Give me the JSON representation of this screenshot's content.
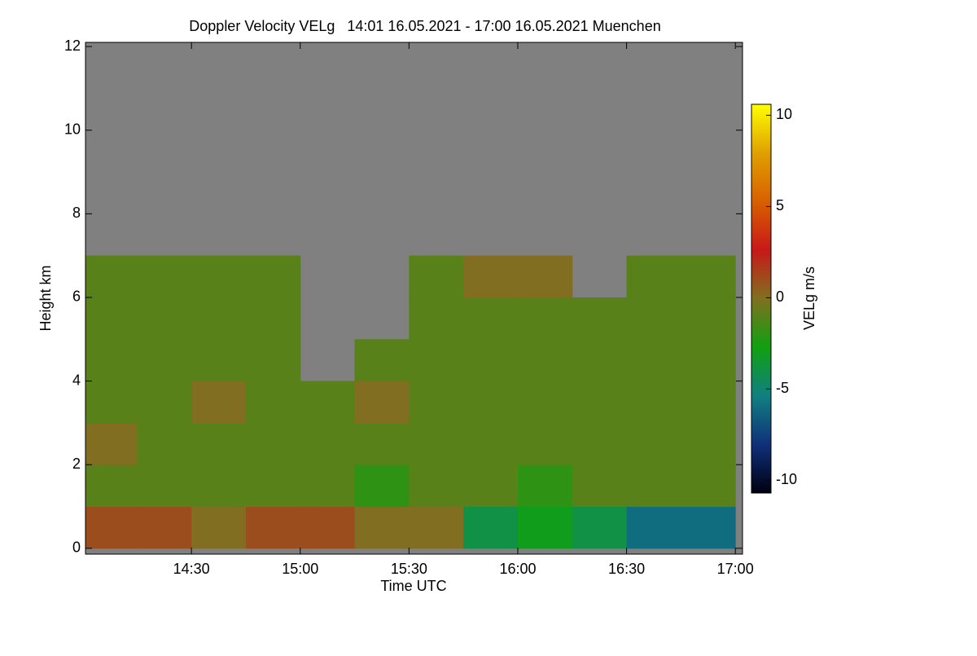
{
  "chart_data": {
    "type": "heatmap",
    "title": "Doppler Velocity VELg   14:01 16.05.2021 - 17:00 16.05.2021 Muenchen",
    "x_label": "Time UTC",
    "y_label": "Height km",
    "colorbar_label": "VELg m/s",
    "x": [
      14.125,
      14.375,
      14.625,
      14.875,
      15.125,
      15.375,
      15.625,
      15.875,
      16.125,
      16.375,
      16.625,
      16.875
    ],
    "y": [
      0.5,
      1.5,
      2.5,
      3.5,
      4.5,
      5.5,
      6.5,
      7.5,
      8.5,
      9.5,
      10.5,
      11.5
    ],
    "z": [
      [
        1,
        1,
        0,
        1,
        1,
        0,
        0,
        -4,
        -3,
        -4,
        -6,
        -6
      ],
      [
        -1,
        -1,
        -1,
        -1,
        -1,
        -2,
        -1,
        -1,
        -2,
        -1,
        -1,
        -1
      ],
      [
        0,
        -1,
        -1,
        -1,
        -1,
        -1,
        -1,
        -1,
        -1,
        -1,
        -1,
        -1
      ],
      [
        -1,
        -1,
        0,
        -1,
        -1,
        0,
        -1,
        -1,
        -1,
        -1,
        -1,
        -1
      ],
      [
        -1,
        -1,
        -1,
        -1,
        null,
        -1,
        -1,
        -1,
        -1,
        -1,
        -1,
        -1
      ],
      [
        -1,
        -1,
        -1,
        -1,
        null,
        null,
        -1,
        -1,
        -1,
        -1,
        -1,
        -1
      ],
      [
        -1,
        -1,
        -1,
        -1,
        null,
        null,
        -1,
        0,
        0,
        null,
        -1,
        -1
      ],
      [
        null,
        null,
        null,
        null,
        null,
        null,
        null,
        null,
        null,
        null,
        null,
        null
      ],
      [
        null,
        null,
        null,
        null,
        null,
        null,
        null,
        null,
        null,
        null,
        null,
        null
      ],
      [
        null,
        null,
        null,
        null,
        null,
        null,
        null,
        null,
        null,
        null,
        null,
        null
      ],
      [
        null,
        null,
        null,
        null,
        null,
        null,
        null,
        null,
        null,
        null,
        null,
        null
      ],
      [
        null,
        null,
        null,
        null,
        null,
        null,
        null,
        null,
        null,
        null,
        null,
        null
      ]
    ],
    "xlim": [
      14.013,
      17.033
    ],
    "xticks": [
      {
        "value": 14.5,
        "label": "14:30"
      },
      {
        "value": 15.0,
        "label": "15:00"
      },
      {
        "value": 15.5,
        "label": "15:30"
      },
      {
        "value": 16.0,
        "label": "16:00"
      },
      {
        "value": 16.5,
        "label": "16:30"
      },
      {
        "value": 17.0,
        "label": "17:00"
      }
    ],
    "ylim": [
      -0.14,
      12.1
    ],
    "yticks": [
      0,
      2,
      4,
      6,
      8,
      10,
      12
    ],
    "zlim": [
      -10.7,
      10.6
    ],
    "zticks": [
      -10,
      -5,
      0,
      5,
      10
    ],
    "colormap": [
      "#000010",
      "#10307a",
      "#108080",
      "#10a010",
      "#807020",
      "#c81818",
      "#d86000",
      "#e0a000",
      "#ffff00"
    ],
    "missing_color": "#808080"
  }
}
